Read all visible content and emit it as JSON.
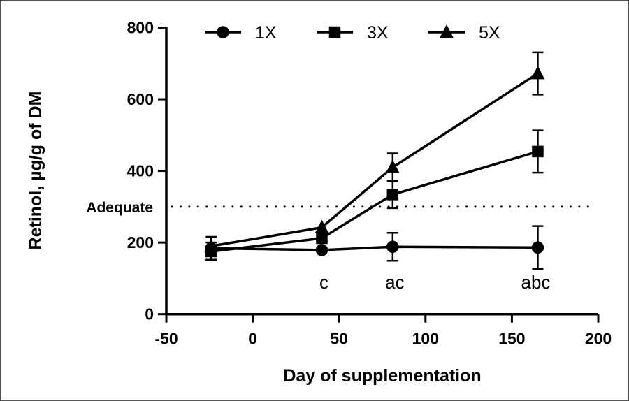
{
  "chart_data": {
    "type": "line",
    "title": "",
    "xlabel": "Day of supplementation",
    "ylabel": "Retinol, µg/g of DM",
    "xlim": [
      -50,
      200
    ],
    "ylim": [
      0,
      800
    ],
    "xticks": [
      -50,
      0,
      50,
      100,
      150,
      200
    ],
    "yticks": [
      0,
      200,
      400,
      600,
      800
    ],
    "grid": false,
    "legend": "top",
    "x": [
      -24,
      40,
      81,
      165
    ],
    "series": [
      {
        "name": "1X",
        "marker": "circle",
        "values": [
          184,
          179,
          188,
          186
        ],
        "error": [
          32,
          0,
          39,
          60
        ]
      },
      {
        "name": "3X",
        "marker": "square",
        "values": [
          175,
          212,
          334,
          454
        ],
        "error": [
          25,
          0,
          38,
          59
        ]
      },
      {
        "name": "5X",
        "marker": "triangle",
        "values": [
          190,
          242,
          410,
          672
        ],
        "error": [
          0,
          0,
          39,
          59
        ]
      }
    ],
    "reference_line": {
      "label": "Adequate",
      "y": 300,
      "style": "dotted"
    },
    "annotations": [
      {
        "x": 40,
        "text": "c"
      },
      {
        "x": 81,
        "text": "ac"
      },
      {
        "x": 165,
        "text": "abc"
      }
    ],
    "color": "#000000"
  }
}
